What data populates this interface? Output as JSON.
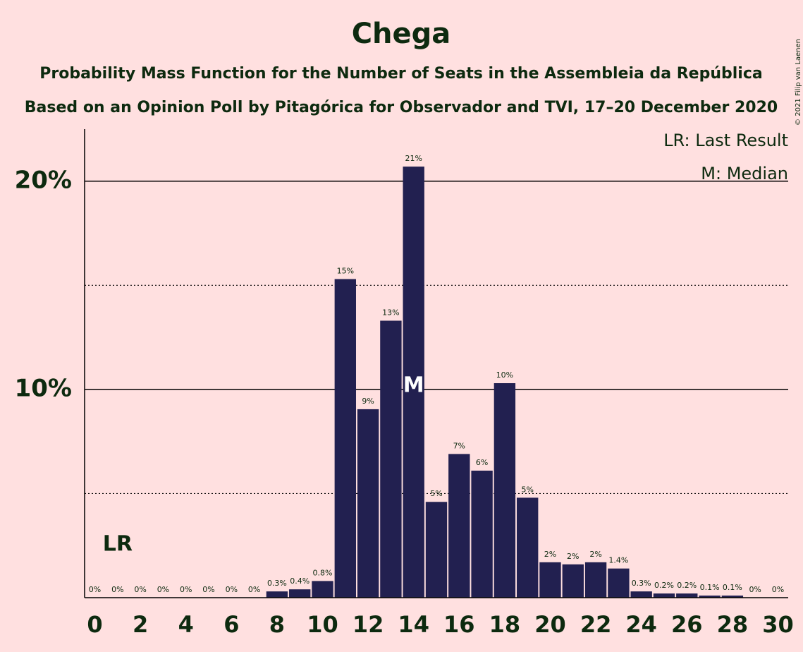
{
  "chart_data": {
    "type": "bar",
    "title": "Chega",
    "subtitle": "Probability Mass Function for the Number of Seats in the Assembleia da República",
    "subtitle2": "Based on an Opinion Poll by Pitagórica for Observador and TVI, 17–20 December 2020",
    "copyright": "© 2021 Filip van Laenen",
    "x": [
      0,
      1,
      2,
      3,
      4,
      5,
      6,
      7,
      8,
      9,
      10,
      11,
      12,
      13,
      14,
      15,
      16,
      17,
      18,
      19,
      20,
      21,
      22,
      23,
      24,
      25,
      26,
      27,
      28,
      29,
      30
    ],
    "values": [
      0,
      0,
      0,
      0,
      0,
      0,
      0,
      0,
      0.3,
      0.4,
      0.8,
      15.3,
      9.05,
      13.3,
      20.7,
      4.6,
      6.9,
      6.1,
      10.3,
      4.8,
      1.7,
      1.6,
      1.7,
      1.4,
      0.3,
      0.2,
      0.2,
      0.1,
      0.1,
      0,
      0
    ],
    "value_labels": [
      "0%",
      "0%",
      "0%",
      "0%",
      "0%",
      "0%",
      "0%",
      "0%",
      "0.3%",
      "0.4%",
      "0.8%",
      "15%",
      "9%",
      "13%",
      "21%",
      "5%",
      "7%",
      "6%",
      "10%",
      "5%",
      "2%",
      "2%",
      "2%",
      "1.4%",
      "0.3%",
      "0.2%",
      "0.2%",
      "0.1%",
      "0.1%",
      "0%",
      "0%"
    ],
    "color": "#222050",
    "xlim": [
      -0.45,
      30.45
    ],
    "xticks": [
      0,
      2,
      4,
      6,
      8,
      10,
      12,
      14,
      16,
      18,
      20,
      22,
      24,
      26,
      28,
      30
    ],
    "ylim": [
      0,
      22.5
    ],
    "yticks": [
      {
        "value": 10,
        "label": "10%"
      },
      {
        "value": 20,
        "label": "20%"
      }
    ],
    "minor_yticks": [
      5,
      15
    ],
    "grid": true,
    "last_result": {
      "x": 1,
      "label": "LR"
    },
    "median": {
      "x": 14,
      "label": "M"
    },
    "legend": [
      "LR: Last Result",
      "M: Median"
    ]
  }
}
